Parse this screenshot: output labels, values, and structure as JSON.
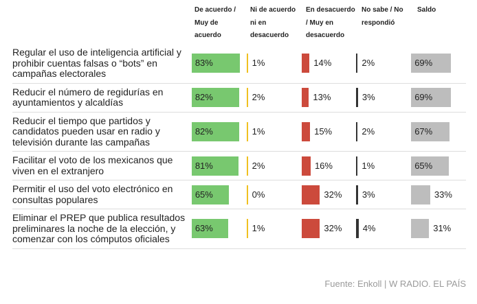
{
  "chart_data": {
    "type": "bar-table",
    "categories": [
      "Regular el uso de inteligencia artificial y prohibir cuentas falsas o “bots” en campañas electorales",
      "Reducir el número de regidurías en ayuntamientos y alcaldías",
      "Reducir el tiempo que partidos y candidatos pueden usar en radio y televisión durante las campañas",
      "Facilitar el voto de los mexicanos que viven en el extranjero",
      "Permitir el uso del voto electrónico en consultas populares",
      "Eliminar el PREP que publica resultados preliminares la noche de la elección, y comenzar con los cómputos oficiales"
    ],
    "series": [
      {
        "name": "De acuerdo / Muy de acuerdo",
        "color": "#78c86f",
        "values": [
          83,
          82,
          82,
          81,
          65,
          63
        ],
        "value_labels": [
          "83%",
          "82%",
          "82%",
          "81%",
          "65%",
          "63%"
        ]
      },
      {
        "name": "Ni de acuerdo ni en desacuerdo",
        "color": "#f0c020",
        "values": [
          1,
          2,
          1,
          2,
          0,
          1
        ],
        "value_labels": [
          "1%",
          "2%",
          "1%",
          "2%",
          "0%",
          "1%"
        ]
      },
      {
        "name": "En desacuerdo / Muy en desacuerdo",
        "color": "#cc4a3c",
        "values": [
          14,
          13,
          15,
          16,
          32,
          32
        ],
        "value_labels": [
          "14%",
          "13%",
          "15%",
          "16%",
          "32%",
          "32%"
        ]
      },
      {
        "name": "No sabe / No respondió",
        "color": "#333333",
        "values": [
          2,
          3,
          2,
          1,
          3,
          4
        ],
        "value_labels": [
          "2%",
          "3%",
          "2%",
          "1%",
          "3%",
          "4%"
        ]
      },
      {
        "name": "Saldo",
        "color": "#bdbdbd",
        "values": [
          69,
          69,
          67,
          65,
          33,
          31
        ],
        "value_labels": [
          "69%",
          "69%",
          "67%",
          "65%",
          "33%",
          "31%"
        ]
      }
    ],
    "xlim": [
      0,
      100
    ],
    "source": "Fuente: Enkoll | W RADIO. EL PAÍS"
  }
}
